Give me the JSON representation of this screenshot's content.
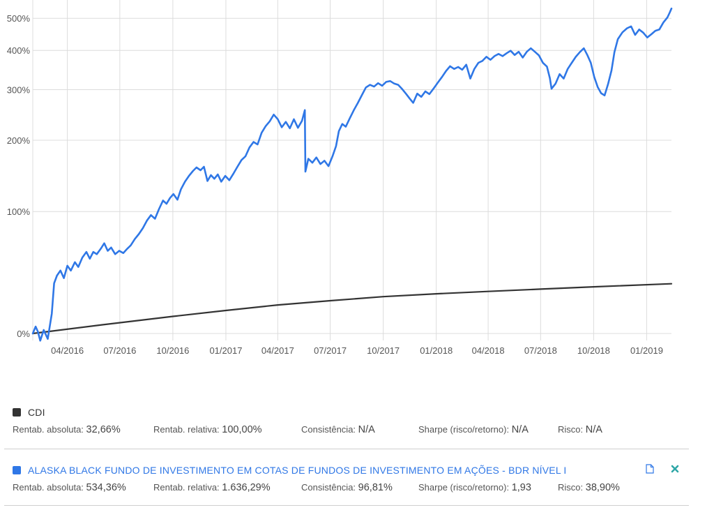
{
  "chart_data": {
    "type": "line",
    "x_ticks": [
      "04/2016",
      "07/2016",
      "10/2016",
      "01/2017",
      "04/2017",
      "07/2017",
      "10/2017",
      "01/2018",
      "04/2018",
      "07/2018",
      "10/2018",
      "01/2019"
    ],
    "y_ticks": [
      "0%",
      "100%",
      "200%",
      "300%",
      "400%",
      "500%"
    ],
    "x_range": [
      "2016-02-01",
      "2019-02-13"
    ],
    "y_scale": "log(1+r)",
    "grid": true,
    "series": [
      {
        "name": "CDI",
        "color": "#333333",
        "points": [
          [
            "2016-02-01",
            0
          ],
          [
            "2016-06-01",
            5.1
          ],
          [
            "2016-10-01",
            10.2
          ],
          [
            "2017-01-01",
            14.0
          ],
          [
            "2017-04-01",
            17.6
          ],
          [
            "2017-07-01",
            20.5
          ],
          [
            "2017-10-01",
            23.3
          ],
          [
            "2018-01-01",
            25.3
          ],
          [
            "2018-04-01",
            27.0
          ],
          [
            "2018-07-01",
            28.7
          ],
          [
            "2018-10-01",
            30.4
          ],
          [
            "2019-02-13",
            32.66
          ]
        ]
      },
      {
        "name": "ALASKA BLACK FUNDO DE INVESTIMENTO EM COTAS DE FUNDOS DE INVESTIMENTO EM AÇÕES - BDR NÍVEL I",
        "color": "#2f77e6",
        "points": [
          [
            "2016-02-01",
            0
          ],
          [
            "2016-02-06",
            4
          ],
          [
            "2016-02-10",
            1
          ],
          [
            "2016-02-14",
            -4
          ],
          [
            "2016-02-20",
            2
          ],
          [
            "2016-02-27",
            -3
          ],
          [
            "2016-03-05",
            12
          ],
          [
            "2016-03-09",
            33
          ],
          [
            "2016-03-14",
            39
          ],
          [
            "2016-03-20",
            43
          ],
          [
            "2016-03-26",
            37
          ],
          [
            "2016-04-01",
            47
          ],
          [
            "2016-04-07",
            43
          ],
          [
            "2016-04-14",
            50
          ],
          [
            "2016-04-20",
            46
          ],
          [
            "2016-04-27",
            54
          ],
          [
            "2016-05-04",
            59
          ],
          [
            "2016-05-10",
            53
          ],
          [
            "2016-05-16",
            59
          ],
          [
            "2016-05-22",
            57
          ],
          [
            "2016-05-29",
            62
          ],
          [
            "2016-06-04",
            67
          ],
          [
            "2016-06-10",
            60
          ],
          [
            "2016-06-16",
            63
          ],
          [
            "2016-06-23",
            57
          ],
          [
            "2016-06-30",
            60
          ],
          [
            "2016-07-07",
            58
          ],
          [
            "2016-07-14",
            62
          ],
          [
            "2016-07-20",
            65
          ],
          [
            "2016-07-27",
            71
          ],
          [
            "2016-08-03",
            76
          ],
          [
            "2016-08-10",
            82
          ],
          [
            "2016-08-17",
            90
          ],
          [
            "2016-08-24",
            96
          ],
          [
            "2016-08-31",
            92
          ],
          [
            "2016-09-07",
            103
          ],
          [
            "2016-09-14",
            113
          ],
          [
            "2016-09-20",
            109
          ],
          [
            "2016-09-26",
            116
          ],
          [
            "2016-10-02",
            121
          ],
          [
            "2016-10-09",
            114
          ],
          [
            "2016-10-15",
            127
          ],
          [
            "2016-10-22",
            137
          ],
          [
            "2016-10-29",
            145
          ],
          [
            "2016-11-05",
            152
          ],
          [
            "2016-11-11",
            157
          ],
          [
            "2016-11-18",
            153
          ],
          [
            "2016-11-24",
            158
          ],
          [
            "2016-11-30",
            138
          ],
          [
            "2016-12-06",
            146
          ],
          [
            "2016-12-12",
            141
          ],
          [
            "2016-12-18",
            147
          ],
          [
            "2016-12-24",
            137
          ],
          [
            "2016-12-31",
            145
          ],
          [
            "2017-01-07",
            139
          ],
          [
            "2017-01-14",
            148
          ],
          [
            "2017-01-21",
            158
          ],
          [
            "2017-01-28",
            168
          ],
          [
            "2017-02-04",
            174
          ],
          [
            "2017-02-11",
            188
          ],
          [
            "2017-02-18",
            197
          ],
          [
            "2017-02-25",
            193
          ],
          [
            "2017-03-04",
            213
          ],
          [
            "2017-03-11",
            225
          ],
          [
            "2017-03-18",
            234
          ],
          [
            "2017-03-25",
            247
          ],
          [
            "2017-04-01",
            238
          ],
          [
            "2017-04-08",
            223
          ],
          [
            "2017-04-15",
            233
          ],
          [
            "2017-04-22",
            221
          ],
          [
            "2017-04-29",
            238
          ],
          [
            "2017-05-06",
            222
          ],
          [
            "2017-05-13",
            235
          ],
          [
            "2017-05-18",
            256
          ],
          [
            "2017-05-19",
            151
          ],
          [
            "2017-05-24",
            170
          ],
          [
            "2017-05-31",
            164
          ],
          [
            "2017-06-07",
            172
          ],
          [
            "2017-06-14",
            162
          ],
          [
            "2017-06-21",
            167
          ],
          [
            "2017-06-28",
            159
          ],
          [
            "2017-07-05",
            174
          ],
          [
            "2017-07-11",
            190
          ],
          [
            "2017-07-16",
            216
          ],
          [
            "2017-07-22",
            229
          ],
          [
            "2017-07-28",
            224
          ],
          [
            "2017-08-04",
            240
          ],
          [
            "2017-08-11",
            256
          ],
          [
            "2017-08-18",
            271
          ],
          [
            "2017-08-25",
            288
          ],
          [
            "2017-09-01",
            305
          ],
          [
            "2017-09-08",
            311
          ],
          [
            "2017-09-15",
            307
          ],
          [
            "2017-09-22",
            315
          ],
          [
            "2017-09-29",
            309
          ],
          [
            "2017-10-06",
            318
          ],
          [
            "2017-10-13",
            320
          ],
          [
            "2017-10-20",
            314
          ],
          [
            "2017-10-27",
            311
          ],
          [
            "2017-11-03",
            301
          ],
          [
            "2017-11-10",
            290
          ],
          [
            "2017-11-16",
            280
          ],
          [
            "2017-11-22",
            271
          ],
          [
            "2017-11-29",
            291
          ],
          [
            "2017-12-06",
            284
          ],
          [
            "2017-12-13",
            296
          ],
          [
            "2017-12-20",
            290
          ],
          [
            "2017-12-27",
            302
          ],
          [
            "2018-01-04",
            317
          ],
          [
            "2018-01-11",
            330
          ],
          [
            "2018-01-18",
            345
          ],
          [
            "2018-01-25",
            357
          ],
          [
            "2018-02-01",
            350
          ],
          [
            "2018-02-08",
            355
          ],
          [
            "2018-02-15",
            348
          ],
          [
            "2018-02-22",
            361
          ],
          [
            "2018-03-01",
            326
          ],
          [
            "2018-03-08",
            350
          ],
          [
            "2018-03-15",
            366
          ],
          [
            "2018-03-22",
            371
          ],
          [
            "2018-03-29",
            382
          ],
          [
            "2018-04-05",
            374
          ],
          [
            "2018-04-12",
            384
          ],
          [
            "2018-04-19",
            390
          ],
          [
            "2018-04-26",
            384
          ],
          [
            "2018-05-03",
            392
          ],
          [
            "2018-05-10",
            399
          ],
          [
            "2018-05-17",
            387
          ],
          [
            "2018-05-24",
            396
          ],
          [
            "2018-05-31",
            380
          ],
          [
            "2018-06-07",
            396
          ],
          [
            "2018-06-14",
            406
          ],
          [
            "2018-06-21",
            396
          ],
          [
            "2018-06-28",
            386
          ],
          [
            "2018-07-05",
            366
          ],
          [
            "2018-07-12",
            356
          ],
          [
            "2018-07-17",
            327
          ],
          [
            "2018-07-20",
            302
          ],
          [
            "2018-07-27",
            314
          ],
          [
            "2018-08-03",
            337
          ],
          [
            "2018-08-10",
            326
          ],
          [
            "2018-08-17",
            350
          ],
          [
            "2018-08-24",
            366
          ],
          [
            "2018-08-31",
            382
          ],
          [
            "2018-09-07",
            395
          ],
          [
            "2018-09-14",
            406
          ],
          [
            "2018-09-20",
            387
          ],
          [
            "2018-09-26",
            366
          ],
          [
            "2018-10-02",
            330
          ],
          [
            "2018-10-08",
            306
          ],
          [
            "2018-10-14",
            292
          ],
          [
            "2018-10-20",
            287
          ],
          [
            "2018-10-26",
            313
          ],
          [
            "2018-11-01",
            346
          ],
          [
            "2018-11-06",
            395
          ],
          [
            "2018-11-12",
            433
          ],
          [
            "2018-11-20",
            454
          ],
          [
            "2018-11-28",
            467
          ],
          [
            "2018-12-05",
            473
          ],
          [
            "2018-12-12",
            446
          ],
          [
            "2018-12-19",
            463
          ],
          [
            "2018-12-26",
            453
          ],
          [
            "2019-01-02",
            438
          ],
          [
            "2019-01-09",
            448
          ],
          [
            "2019-01-16",
            459
          ],
          [
            "2019-01-23",
            463
          ],
          [
            "2019-01-30",
            486
          ],
          [
            "2019-02-06",
            503
          ],
          [
            "2019-02-10",
            520
          ],
          [
            "2019-02-13",
            534.36
          ]
        ]
      }
    ]
  },
  "legend": {
    "cdi": {
      "name": "CDI",
      "color": "#333333",
      "rentab_absoluta_label": "Rentab. absoluta:",
      "rentab_absoluta": "32,66%",
      "rentab_relativa_label": "Rentab. relativa:",
      "rentab_relativa": "100,00%",
      "consistencia_label": "Consistência:",
      "consistencia": "N/A",
      "sharpe_label": "Sharpe (risco/retorno):",
      "sharpe": "N/A",
      "risco_label": "Risco:",
      "risco": "N/A"
    },
    "fund": {
      "name": "ALASKA BLACK FUNDO DE INVESTIMENTO EM COTAS DE FUNDOS DE INVESTIMENTO EM AÇÕES - BDR NÍVEL I",
      "color": "#2f77e6",
      "rentab_absoluta_label": "Rentab. absoluta:",
      "rentab_absoluta": "534,36%",
      "rentab_relativa_label": "Rentab. relativa:",
      "rentab_relativa": "1.636,29%",
      "consistencia_label": "Consistência:",
      "consistencia": "96,81%",
      "sharpe_label": "Sharpe (risco/retorno):",
      "sharpe": "1,93",
      "risco_label": "Risco:",
      "risco": "38,90%",
      "icons": [
        "document-icon",
        "close-icon"
      ]
    }
  },
  "colors": {
    "grid": "#dcdcdc",
    "axis_text": "#555555",
    "fund_name": "#2f77e6",
    "close": "#2fa7a7",
    "document": "#2f77e6"
  }
}
